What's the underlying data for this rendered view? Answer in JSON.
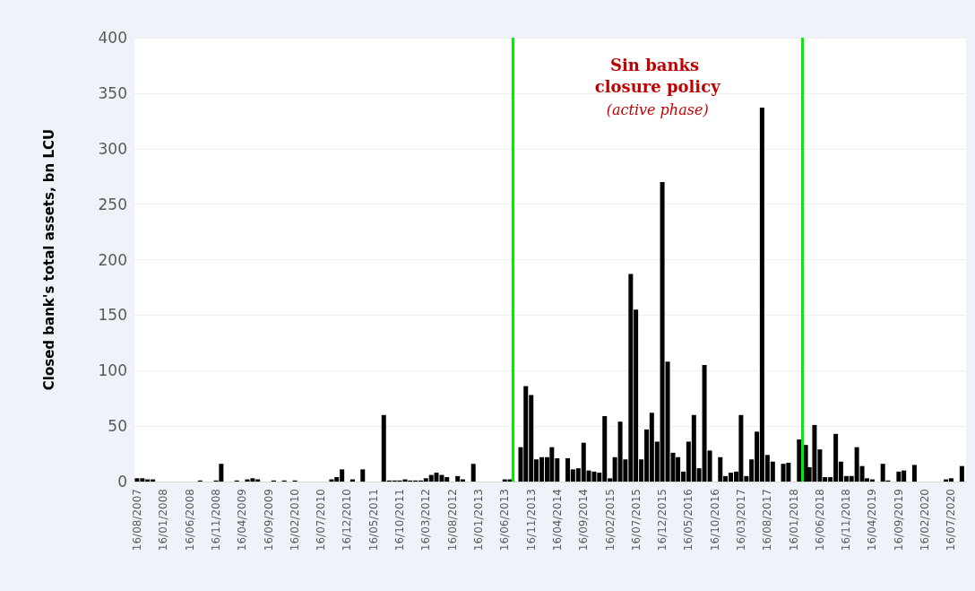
{
  "chart_data": {
    "type": "bar",
    "ylabel": "Closed bank's total assets, bn LCU",
    "annotations": [
      "Sin banks closure policy",
      "(active phase)"
    ],
    "x": [
      "2007-08-16",
      "2007-09-16",
      "2007-10-16",
      "2007-11-16",
      "2008-08-16",
      "2008-11-16",
      "2008-12-16",
      "2009-03-16",
      "2009-05-16",
      "2009-06-16",
      "2009-07-16",
      "2009-10-16",
      "2009-12-16",
      "2010-02-16",
      "2010-09-16",
      "2010-10-16",
      "2010-11-16",
      "2011-01-16",
      "2011-03-16",
      "2011-07-16",
      "2011-08-16",
      "2011-09-16",
      "2011-10-16",
      "2011-11-16",
      "2011-12-16",
      "2012-01-16",
      "2012-02-16",
      "2012-03-16",
      "2012-04-16",
      "2012-05-16",
      "2012-06-16",
      "2012-07-16",
      "2012-09-16",
      "2012-10-16",
      "2012-12-16",
      "2013-06-16",
      "2013-07-16",
      "2013-09-16",
      "2013-10-16",
      "2013-11-16",
      "2013-12-16",
      "2014-01-16",
      "2014-02-16",
      "2014-03-16",
      "2014-04-16",
      "2014-06-16",
      "2014-07-16",
      "2014-08-16",
      "2014-09-16",
      "2014-10-16",
      "2014-11-16",
      "2014-12-16",
      "2015-01-16",
      "2015-02-16",
      "2015-03-16",
      "2015-04-16",
      "2015-05-16",
      "2015-06-16",
      "2015-07-16",
      "2015-08-16",
      "2015-09-16",
      "2015-10-16",
      "2015-11-16",
      "2015-12-16",
      "2016-01-16",
      "2016-02-16",
      "2016-03-16",
      "2016-04-16",
      "2016-05-16",
      "2016-06-16",
      "2016-07-16",
      "2016-08-16",
      "2016-09-16",
      "2016-11-16",
      "2016-12-16",
      "2017-01-16",
      "2017-02-16",
      "2017-03-16",
      "2017-04-16",
      "2017-05-16",
      "2017-06-16",
      "2017-07-16",
      "2017-08-16",
      "2017-09-16",
      "2017-11-16",
      "2017-12-16",
      "2018-02-16",
      "2018-03-26",
      "2018-04-16",
      "2018-05-16",
      "2018-06-16",
      "2018-07-16",
      "2018-08-16",
      "2018-09-16",
      "2018-10-16",
      "2018-11-16",
      "2018-12-16",
      "2019-01-16",
      "2019-02-16",
      "2019-03-16",
      "2019-04-16",
      "2019-06-16",
      "2019-07-16",
      "2019-09-16",
      "2019-10-16",
      "2019-12-16",
      "2020-06-16",
      "2020-07-16",
      "2020-09-16"
    ],
    "values": [
      3,
      3,
      2,
      2,
      1,
      1,
      16,
      1,
      2,
      3,
      2,
      1,
      1,
      1,
      2,
      4,
      11,
      2,
      11,
      60,
      1,
      1,
      1,
      2,
      1,
      1,
      1,
      3,
      6,
      8,
      6,
      4,
      5,
      2,
      16,
      2,
      2,
      31,
      86,
      78,
      20,
      22,
      22,
      31,
      21,
      21,
      11,
      12,
      35,
      10,
      9,
      8,
      59,
      3,
      22,
      54,
      20,
      187,
      155,
      20,
      47,
      62,
      36,
      270,
      108,
      26,
      22,
      9,
      36,
      60,
      12,
      105,
      28,
      22,
      5,
      8,
      9,
      60,
      5,
      20,
      45,
      337,
      24,
      18,
      16,
      17,
      38,
      33,
      13,
      51,
      29,
      4,
      4,
      43,
      18,
      5,
      5,
      31,
      14,
      3,
      2,
      16,
      1,
      9,
      10,
      15,
      2,
      3,
      14
    ],
    "color": "#000000",
    "xlim": [
      "2007-08-01",
      "2020-10-10"
    ],
    "xticks": [
      {
        "value": "2007-08-16",
        "label": "16/08/2007"
      },
      {
        "value": "2008-01-16",
        "label": "16/01/2008"
      },
      {
        "value": "2008-06-16",
        "label": "16/06/2008"
      },
      {
        "value": "2008-11-16",
        "label": "16/11/2008"
      },
      {
        "value": "2009-04-16",
        "label": "16/04/2009"
      },
      {
        "value": "2009-09-16",
        "label": "16/09/2009"
      },
      {
        "value": "2010-02-16",
        "label": "16/02/2010"
      },
      {
        "value": "2010-07-16",
        "label": "16/07/2010"
      },
      {
        "value": "2010-12-16",
        "label": "16/12/2010"
      },
      {
        "value": "2011-05-16",
        "label": "16/05/2011"
      },
      {
        "value": "2011-10-16",
        "label": "16/10/2011"
      },
      {
        "value": "2012-03-16",
        "label": "16/03/2012"
      },
      {
        "value": "2012-08-16",
        "label": "16/08/2012"
      },
      {
        "value": "2013-01-16",
        "label": "16/01/2013"
      },
      {
        "value": "2013-06-16",
        "label": "16/06/2013"
      },
      {
        "value": "2013-11-16",
        "label": "16/11/2013"
      },
      {
        "value": "2014-04-16",
        "label": "16/04/2014"
      },
      {
        "value": "2014-09-16",
        "label": "16/09/2014"
      },
      {
        "value": "2015-02-16",
        "label": "16/02/2015"
      },
      {
        "value": "2015-07-16",
        "label": "16/07/2015"
      },
      {
        "value": "2015-12-16",
        "label": "16/12/2015"
      },
      {
        "value": "2016-05-16",
        "label": "16/05/2016"
      },
      {
        "value": "2016-10-16",
        "label": "16/10/2016"
      },
      {
        "value": "2017-03-16",
        "label": "16/03/2017"
      },
      {
        "value": "2017-08-16",
        "label": "16/08/2017"
      },
      {
        "value": "2018-01-16",
        "label": "16/01/2018"
      },
      {
        "value": "2018-06-16",
        "label": "16/06/2018"
      },
      {
        "value": "2018-11-16",
        "label": "16/11/2018"
      },
      {
        "value": "2019-04-16",
        "label": "16/04/2019"
      },
      {
        "value": "2019-09-16",
        "label": "16/09/2019"
      },
      {
        "value": "2020-02-16",
        "label": "16/02/2020"
      },
      {
        "value": "2020-07-16",
        "label": "16/07/2020"
      }
    ],
    "ylim": [
      0,
      400
    ],
    "yticks": [
      0,
      50,
      100,
      150,
      200,
      250,
      300,
      350,
      400
    ],
    "grid": "y",
    "ref_lines": [
      {
        "axis": "x",
        "value": "2013-08-01",
        "color": "#00ee00"
      },
      {
        "axis": "x",
        "value": "2018-03-06",
        "color": "#00ee00"
      }
    ]
  }
}
